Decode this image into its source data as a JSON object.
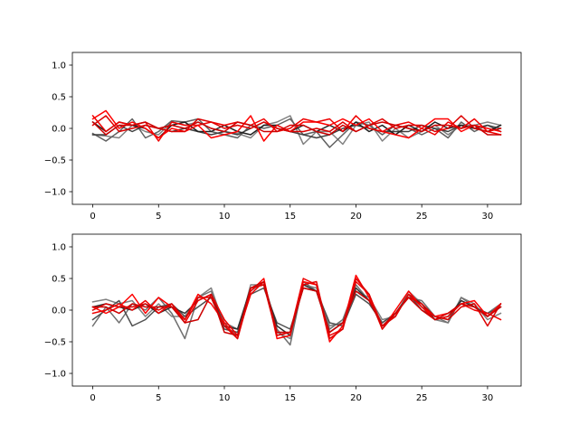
{
  "chart_data": [
    {
      "type": "line",
      "title": "",
      "xlabel": "",
      "ylabel": "",
      "xlim": [
        -1.55,
        32.55
      ],
      "ylim": [
        -1.2,
        1.2
      ],
      "xticks": [
        0,
        5,
        10,
        15,
        20,
        25,
        30
      ],
      "yticks": [
        -1.0,
        -0.5,
        0.0,
        0.5,
        1.0
      ],
      "xtick_labels": [
        "0",
        "5",
        "10",
        "15",
        "20",
        "25",
        "30"
      ],
      "ytick_labels": [
        "−1.0",
        "−0.5",
        "0.0",
        "0.5",
        "1.0"
      ],
      "grid": false,
      "series": [
        {
          "color": "#808080",
          "values": [
            -0.1,
            -0.12,
            -0.15,
            0.05,
            -0.05,
            -0.1,
            0.1,
            0.05,
            0.1,
            0.0,
            -0.05,
            -0.08,
            -0.15,
            0.05,
            0.1,
            0.2,
            -0.25,
            -0.05,
            -0.05,
            -0.25,
            0.05,
            0.1,
            -0.2,
            0.0,
            -0.15,
            -0.05,
            0.05,
            -0.1,
            0.05,
            0.05,
            0.1,
            0.05
          ]
        },
        {
          "color": "#606060",
          "values": [
            -0.08,
            -0.2,
            -0.05,
            0.15,
            -0.15,
            -0.05,
            0.12,
            0.1,
            0.15,
            -0.05,
            -0.1,
            -0.15,
            0.05,
            0.0,
            0.05,
            0.15,
            -0.1,
            -0.05,
            -0.3,
            -0.1,
            0.1,
            0.05,
            -0.1,
            0.05,
            0.0,
            -0.1,
            0.0,
            -0.15,
            0.1,
            -0.05,
            0.05,
            0.0
          ]
        },
        {
          "color": "#404040",
          "values": [
            -0.1,
            -0.1,
            0.05,
            -0.05,
            0.05,
            0.0,
            -0.05,
            0.0,
            -0.05,
            -0.1,
            -0.05,
            -0.1,
            0.0,
            0.1,
            0.0,
            -0.05,
            -0.1,
            -0.15,
            -0.1,
            0.0,
            0.05,
            0.0,
            -0.05,
            -0.05,
            -0.05,
            0.05,
            0.0,
            -0.05,
            0.05,
            0.0,
            0.05,
            -0.05
          ]
        },
        {
          "color": "#202020",
          "values": [
            0.1,
            -0.05,
            0.1,
            0.05,
            0.0,
            -0.15,
            0.05,
            0.1,
            -0.05,
            -0.05,
            0.05,
            -0.05,
            -0.1,
            0.05,
            0.05,
            -0.05,
            0.05,
            -0.05,
            0.05,
            -0.05,
            0.1,
            -0.05,
            0.05,
            -0.1,
            0.05,
            -0.05,
            0.1,
            0.0,
            0.05,
            0.0,
            -0.05,
            0.05
          ]
        },
        {
          "color": "#ff0000",
          "values": [
            0.15,
            0.28,
            0.0,
            0.1,
            0.0,
            -0.15,
            0.0,
            -0.05,
            0.05,
            -0.15,
            -0.1,
            -0.05,
            0.2,
            -0.2,
            0.05,
            -0.05,
            0.1,
            0.1,
            0.05,
            0.15,
            0.05,
            0.15,
            -0.05,
            -0.1,
            -0.15,
            0.0,
            0.15,
            0.15,
            -0.05,
            0.05,
            0.0,
            -0.05
          ]
        },
        {
          "color": "#ee0000",
          "values": [
            0.2,
            -0.05,
            0.1,
            0.05,
            0.1,
            -0.2,
            0.1,
            0.05,
            0.05,
            0.1,
            0.05,
            0.1,
            0.05,
            0.15,
            -0.05,
            0.0,
            0.15,
            0.1,
            0.15,
            -0.05,
            0.2,
            0.0,
            -0.05,
            0.05,
            0.1,
            0.0,
            -0.1,
            0.1,
            0.0,
            0.15,
            -0.05,
            -0.1
          ]
        },
        {
          "color": "#dd0000",
          "values": [
            0.05,
            0.2,
            -0.05,
            0.0,
            0.05,
            0.0,
            -0.05,
            -0.05,
            0.15,
            0.1,
            0.0,
            0.05,
            0.0,
            0.1,
            0.0,
            -0.05,
            -0.05,
            0.0,
            -0.05,
            0.1,
            -0.05,
            0.05,
            0.15,
            0.0,
            0.05,
            0.05,
            -0.05,
            0.0,
            0.2,
            0.0,
            -0.05,
            0.0
          ]
        },
        {
          "color": "#cc0000",
          "values": [
            0.1,
            -0.1,
            0.05,
            0.05,
            0.1,
            0.0,
            0.05,
            0.0,
            0.1,
            0.0,
            -0.05,
            0.1,
            0.05,
            -0.05,
            -0.05,
            0.05,
            0.05,
            -0.05,
            -0.1,
            0.05,
            -0.05,
            0.05,
            0.1,
            0.05,
            0.0,
            -0.05,
            0.05,
            0.05,
            0.0,
            0.05,
            -0.1,
            -0.1
          ]
        }
      ]
    },
    {
      "type": "line",
      "title": "",
      "xlabel": "",
      "ylabel": "",
      "xlim": [
        -1.55,
        32.55
      ],
      "ylim": [
        -1.2,
        1.2
      ],
      "xticks": [
        0,
        5,
        10,
        15,
        20,
        25,
        30
      ],
      "yticks": [
        -1.0,
        -0.5,
        0.0,
        0.5,
        1.0
      ],
      "xtick_labels": [
        "0",
        "5",
        "10",
        "15",
        "20",
        "25",
        "30"
      ],
      "ytick_labels": [
        "−1.0",
        "−0.5",
        "0.0",
        "0.5",
        "1.0"
      ],
      "grid": false,
      "series": [
        {
          "color": "#808080",
          "values": [
            0.13,
            0.17,
            0.1,
            0.15,
            -0.1,
            0.1,
            -0.1,
            -0.1,
            0.2,
            0.35,
            -0.25,
            -0.4,
            0.4,
            0.4,
            -0.35,
            -0.45,
            0.4,
            0.35,
            -0.25,
            -0.2,
            0.3,
            0.2,
            -0.15,
            -0.1,
            0.3,
            0.1,
            -0.15,
            -0.2,
            0.2,
            0.1,
            -0.15,
            -0.05
          ]
        },
        {
          "color": "#707070",
          "values": [
            -0.25,
            0.05,
            -0.2,
            0.1,
            0.0,
            0.2,
            -0.05,
            -0.45,
            0.2,
            0.3,
            -0.2,
            -0.3,
            0.3,
            0.45,
            -0.3,
            -0.55,
            0.45,
            0.3,
            -0.3,
            -0.15,
            0.4,
            0.15,
            -0.2,
            -0.05,
            0.2,
            0.15,
            -0.1,
            -0.2,
            0.2,
            0.05,
            -0.05,
            0.1
          ]
        },
        {
          "color": "#505050",
          "values": [
            -0.15,
            0.0,
            0.15,
            -0.25,
            -0.15,
            0.05,
            0.1,
            -0.1,
            0.05,
            0.2,
            -0.3,
            -0.35,
            0.25,
            0.35,
            -0.2,
            -0.3,
            0.35,
            0.3,
            -0.2,
            -0.25,
            0.25,
            0.1,
            -0.2,
            -0.05,
            0.25,
            0.0,
            -0.1,
            -0.15,
            0.15,
            0.05,
            -0.05,
            0.05
          ]
        },
        {
          "color": "#303030",
          "values": [
            0.05,
            0.1,
            0.05,
            0.0,
            0.1,
            -0.05,
            0.05,
            -0.05,
            0.15,
            0.25,
            -0.25,
            -0.3,
            0.35,
            0.4,
            -0.25,
            -0.4,
            0.4,
            0.3,
            -0.35,
            -0.2,
            0.35,
            0.15,
            -0.25,
            -0.1,
            0.25,
            0.1,
            -0.15,
            -0.1,
            0.15,
            0.05,
            -0.1,
            0.05
          ]
        },
        {
          "color": "#ff0000",
          "values": [
            0.05,
            -0.05,
            0.05,
            0.25,
            -0.05,
            0.2,
            0.05,
            -0.15,
            0.25,
            0.1,
            -0.2,
            -0.45,
            0.3,
            0.5,
            -0.45,
            -0.4,
            0.45,
            0.4,
            -0.5,
            -0.25,
            0.55,
            0.2,
            -0.3,
            0.0,
            0.3,
            0.05,
            -0.1,
            -0.05,
            0.1,
            0.15,
            -0.1,
            0.1
          ]
        },
        {
          "color": "#ee0000",
          "values": [
            -0.05,
            0.0,
            0.1,
            0.0,
            0.15,
            -0.05,
            0.1,
            -0.2,
            0.15,
            0.25,
            -0.15,
            -0.4,
            0.25,
            0.45,
            -0.4,
            -0.35,
            0.5,
            0.4,
            -0.4,
            -0.3,
            0.45,
            0.25,
            -0.25,
            -0.1,
            0.25,
            0.05,
            -0.15,
            -0.1,
            0.1,
            0.0,
            -0.05,
            -0.15
          ]
        },
        {
          "color": "#dd0000",
          "values": [
            0.0,
            0.1,
            0.05,
            0.05,
            0.1,
            0.0,
            0.1,
            -0.15,
            0.2,
            0.2,
            -0.25,
            -0.45,
            0.35,
            0.4,
            -0.4,
            -0.35,
            0.4,
            0.45,
            -0.45,
            -0.3,
            0.5,
            0.25,
            -0.3,
            -0.05,
            0.2,
            0.1,
            -0.1,
            -0.15,
            0.05,
            0.1,
            -0.25,
            0.1
          ]
        },
        {
          "color": "#cc0000",
          "values": [
            0.05,
            0.05,
            -0.05,
            0.1,
            0.05,
            0.05,
            0.05,
            -0.2,
            -0.15,
            0.25,
            -0.35,
            -0.4,
            0.35,
            0.45,
            -0.35,
            -0.35,
            0.35,
            0.3,
            -0.35,
            -0.2,
            0.3,
            0.15,
            -0.25,
            -0.05,
            0.2,
            0.0,
            -0.15,
            -0.05,
            0.1,
            0.05,
            -0.1,
            0.05
          ]
        }
      ]
    }
  ]
}
